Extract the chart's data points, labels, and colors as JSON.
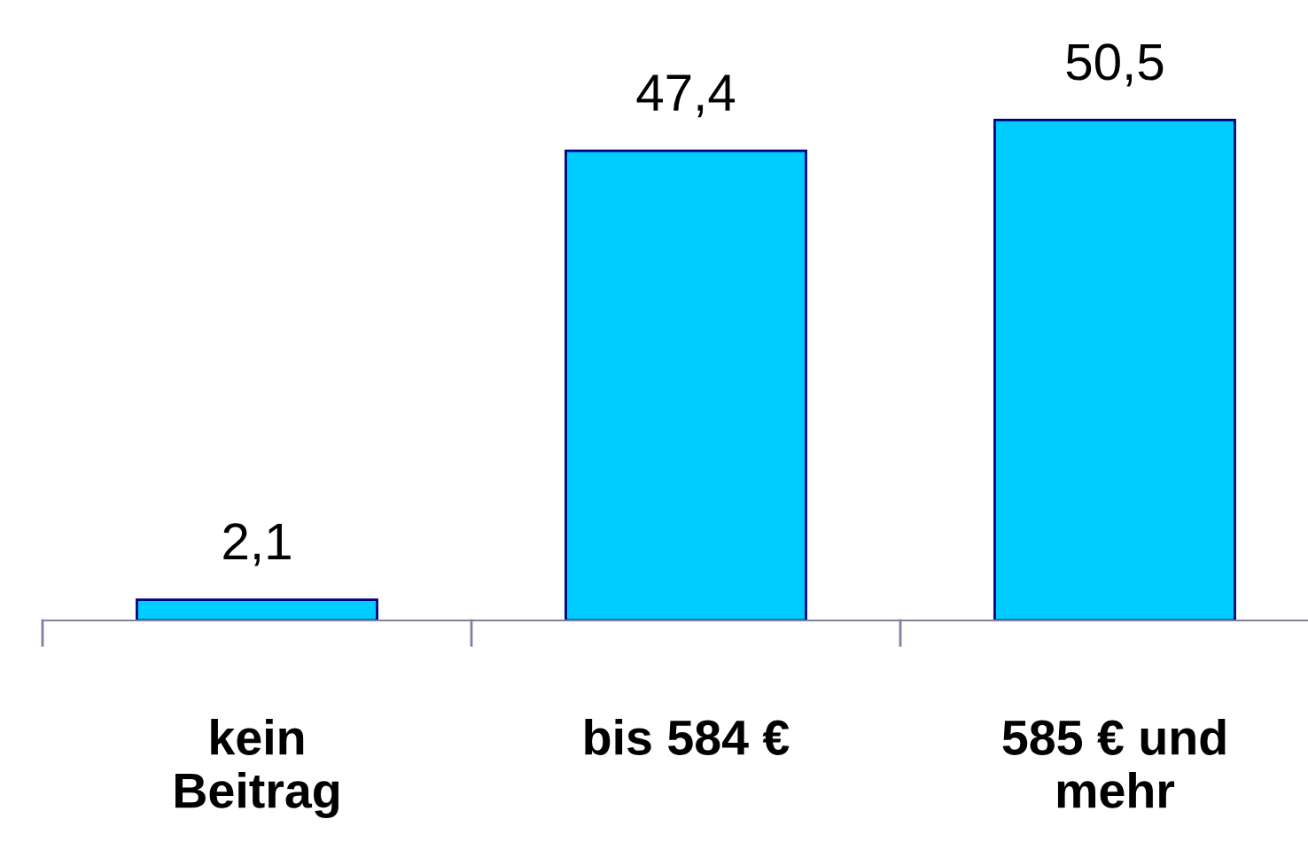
{
  "chart_data": {
    "type": "bar",
    "categories": [
      "kein\nBeitrag",
      "bis 584 €",
      "585 € und\nmehr"
    ],
    "values": [
      2.1,
      47.4,
      50.5
    ],
    "value_labels": [
      "2,1",
      "47,4",
      "50,5"
    ],
    "color": "#00ccff",
    "grid": false
  }
}
